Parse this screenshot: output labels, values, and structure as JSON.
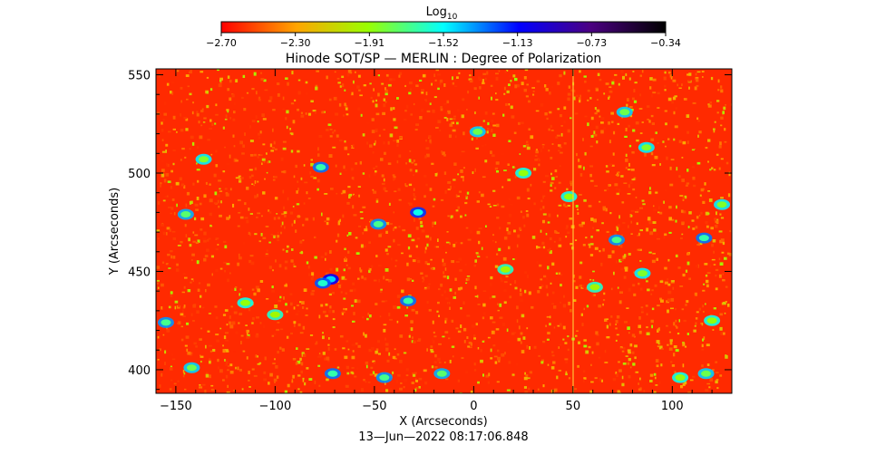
{
  "chart_data": {
    "type": "heatmap",
    "title": "Hinode SOT/SP — MERLIN : Degree of Polarization",
    "xlabel": "X (Arcseconds)",
    "ylabel": "Y (Arcseconds)",
    "footer": "13—Jun—2022 08:17:06.848",
    "colorbar": {
      "label_base": "Log",
      "label_sub": "10",
      "ticks": [
        "−2.70",
        "−2.30",
        "−1.91",
        "−1.52",
        "−1.13",
        "−0.73",
        "−0.34"
      ],
      "range": [
        -2.7,
        -0.34
      ]
    },
    "xlim": [
      -160,
      130
    ],
    "ylim": [
      388,
      553
    ],
    "xticks": [
      -150,
      -100,
      -50,
      0,
      50,
      100
    ],
    "xtick_labels": [
      "−150",
      "−100",
      "−50",
      "0",
      "50",
      "100"
    ],
    "yticks": [
      400,
      450,
      500,
      550
    ],
    "ytick_labels": [
      "400",
      "450",
      "500",
      "550"
    ],
    "grid": false,
    "background_level": -2.6,
    "high_polarization_patches": [
      {
        "x": -145,
        "y": 479,
        "level": -1.75
      },
      {
        "x": -136,
        "y": 507,
        "level": -1.85
      },
      {
        "x": -155,
        "y": 424,
        "level": -1.7
      },
      {
        "x": -142,
        "y": 401,
        "level": -1.8
      },
      {
        "x": -115,
        "y": 434,
        "level": -1.9
      },
      {
        "x": -100,
        "y": 428,
        "level": -1.95
      },
      {
        "x": -77,
        "y": 503,
        "level": -1.65
      },
      {
        "x": -72,
        "y": 446,
        "level": -1.45
      },
      {
        "x": -76,
        "y": 444,
        "level": -1.6
      },
      {
        "x": -71,
        "y": 398,
        "level": -1.65
      },
      {
        "x": -48,
        "y": 474,
        "level": -1.7
      },
      {
        "x": -28,
        "y": 480,
        "level": -1.55
      },
      {
        "x": -33,
        "y": 435,
        "level": -1.65
      },
      {
        "x": -45,
        "y": 396,
        "level": -1.7
      },
      {
        "x": -16,
        "y": 398,
        "level": -1.75
      },
      {
        "x": 2,
        "y": 521,
        "level": -1.8
      },
      {
        "x": 25,
        "y": 500,
        "level": -1.9
      },
      {
        "x": 16,
        "y": 451,
        "level": -1.95
      },
      {
        "x": 48,
        "y": 488,
        "level": -1.9
      },
      {
        "x": 72,
        "y": 466,
        "level": -1.7
      },
      {
        "x": 76,
        "y": 531,
        "level": -1.8
      },
      {
        "x": 87,
        "y": 513,
        "level": -1.85
      },
      {
        "x": 85,
        "y": 449,
        "level": -1.85
      },
      {
        "x": 116,
        "y": 467,
        "level": -1.65
      },
      {
        "x": 125,
        "y": 484,
        "level": -1.85
      },
      {
        "x": 120,
        "y": 425,
        "level": -1.9
      },
      {
        "x": 117,
        "y": 398,
        "level": -1.8
      },
      {
        "x": 104,
        "y": 396,
        "level": -1.9
      },
      {
        "x": 61,
        "y": 442,
        "level": -1.95
      }
    ]
  }
}
